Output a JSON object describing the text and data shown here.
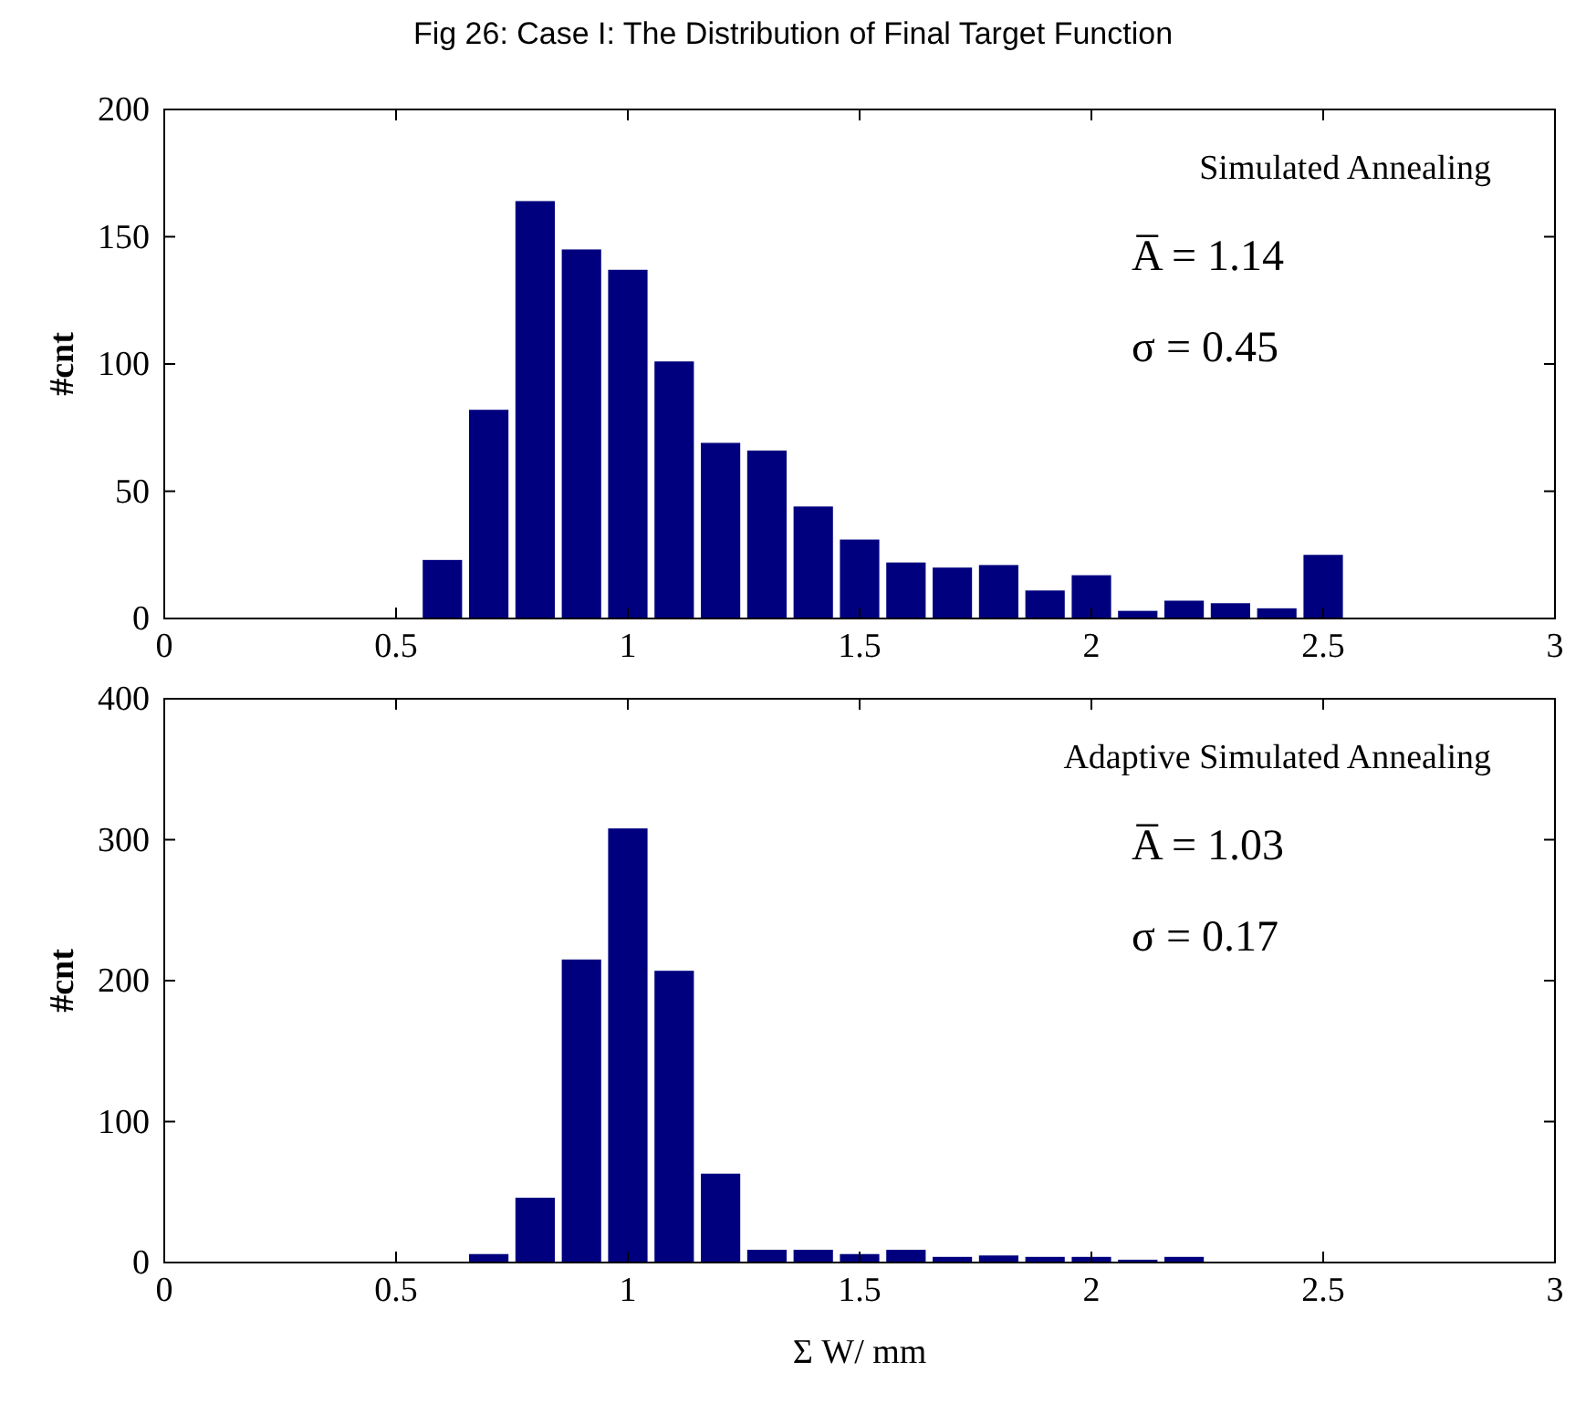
{
  "chart_data": [
    {
      "type": "bar",
      "title": "Fig 26: Case I: The Distribution of Final Target Function",
      "ylabel": "#cnt",
      "annotations": [
        "Simulated Annealing",
        "A̅ = 1.14",
        "σ = 0.45"
      ],
      "x": [
        0.6,
        0.7,
        0.8,
        0.9,
        1.0,
        1.1,
        1.2,
        1.3,
        1.4,
        1.5,
        1.6,
        1.7,
        1.8,
        1.9,
        2.0,
        2.1,
        2.2,
        2.3,
        2.4,
        2.5
      ],
      "values": [
        23,
        82,
        164,
        145,
        137,
        101,
        69,
        66,
        44,
        31,
        22,
        20,
        21,
        11,
        17,
        3,
        7,
        6,
        4,
        25
      ],
      "color": "#00007f",
      "xlim": [
        0,
        3
      ],
      "xticks": [
        0,
        0.5,
        1,
        1.5,
        2,
        2.5,
        3
      ],
      "ylim": [
        0,
        200
      ],
      "yticks": [
        0,
        50,
        100,
        150,
        200
      ]
    },
    {
      "type": "bar",
      "xlabel": "Σ W/ mm",
      "ylabel": "#cnt",
      "annotations": [
        "Adaptive Simulated Annealing",
        "A̅ = 1.03",
        "σ = 0.17"
      ],
      "x": [
        0.7,
        0.8,
        0.9,
        1.0,
        1.1,
        1.2,
        1.3,
        1.4,
        1.5,
        1.6,
        1.7,
        1.8,
        1.9,
        2.0,
        2.1,
        2.2
      ],
      "values": [
        6,
        46,
        215,
        308,
        207,
        63,
        9,
        9,
        6,
        9,
        4,
        5,
        4,
        4,
        2,
        4
      ],
      "color": "#00007f",
      "xlim": [
        0,
        3
      ],
      "xticks": [
        0,
        0.5,
        1,
        1.5,
        2,
        2.5,
        3
      ],
      "ylim": [
        0,
        400
      ],
      "yticks": [
        0,
        100,
        200,
        300,
        400
      ]
    }
  ]
}
